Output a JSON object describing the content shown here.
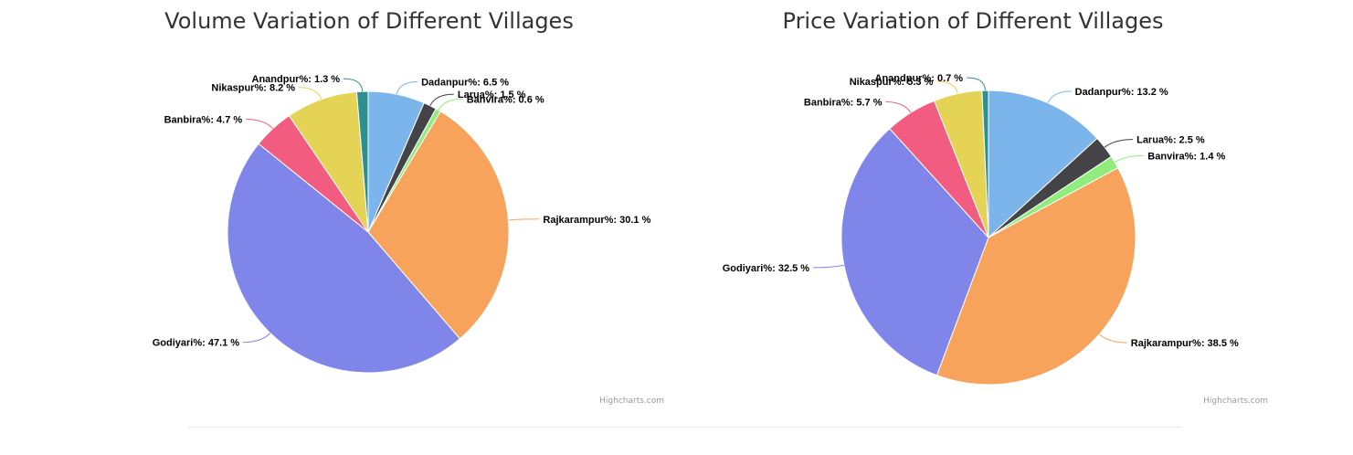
{
  "label_suffix": " %",
  "chart_data": [
    {
      "type": "pie",
      "title": "Volume Variation of Different Villages",
      "credits": "Highcharts.com",
      "slices": [
        {
          "name": "Dadanpur%",
          "value": 6.5,
          "color": "#7cb5ec"
        },
        {
          "name": "Larua%",
          "value": 1.5,
          "color": "#434348"
        },
        {
          "name": "Banvira%",
          "value": 0.6,
          "color": "#90ed7d"
        },
        {
          "name": "Rajkarampur%",
          "value": 30.1,
          "color": "#f7a35c"
        },
        {
          "name": "Godiyari%",
          "value": 47.1,
          "color": "#8085e9"
        },
        {
          "name": "Banbira%",
          "value": 4.7,
          "color": "#f15c80"
        },
        {
          "name": "Nikaspur%",
          "value": 8.2,
          "color": "#e4d354"
        },
        {
          "name": "Anandpur%",
          "value": 1.3,
          "color": "#2b908f"
        }
      ]
    },
    {
      "type": "pie",
      "title": "Price Variation of Different Villages",
      "credits": "Highcharts.com",
      "slices": [
        {
          "name": "Dadanpur%",
          "value": 13.2,
          "color": "#7cb5ec"
        },
        {
          "name": "Larua%",
          "value": 2.5,
          "color": "#434348"
        },
        {
          "name": "Banvira%",
          "value": 1.4,
          "color": "#90ed7d"
        },
        {
          "name": "Rajkarampur%",
          "value": 38.5,
          "color": "#f7a35c"
        },
        {
          "name": "Godiyari%",
          "value": 32.5,
          "color": "#8085e9"
        },
        {
          "name": "Banbira%",
          "value": 5.7,
          "color": "#f15c80"
        },
        {
          "name": "Nikaspur%",
          "value": 5.3,
          "color": "#e4d354"
        },
        {
          "name": "Anandpur%",
          "value": 0.7,
          "color": "#2b908f"
        }
      ]
    }
  ]
}
